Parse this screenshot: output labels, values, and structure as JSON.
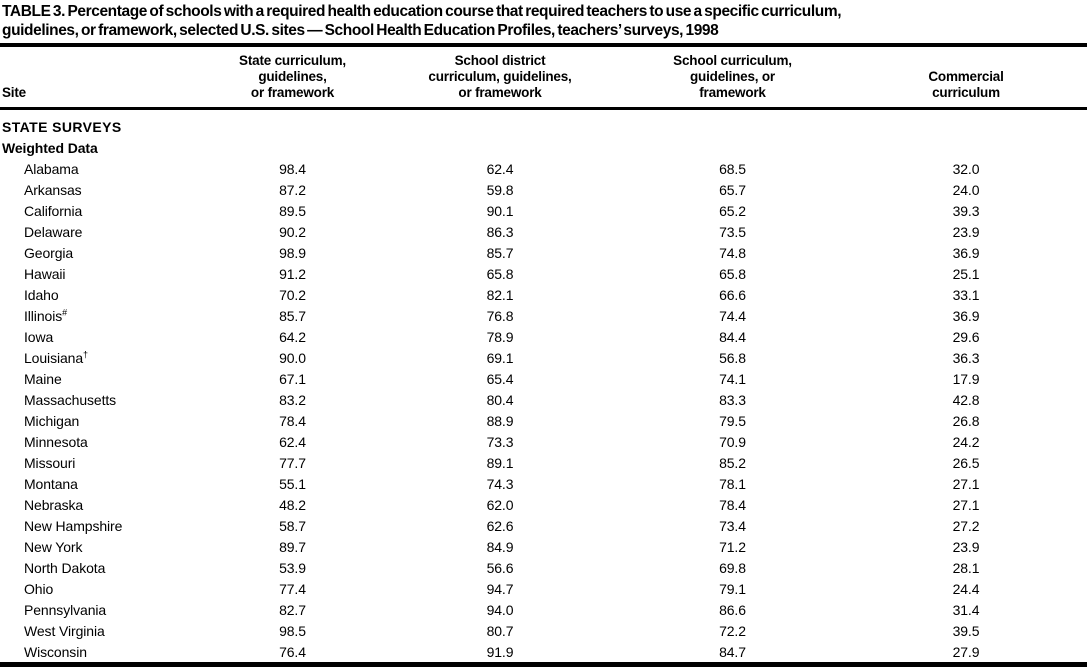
{
  "page": {
    "title_line1": "TABLE 3. Percentage of schools with a required health education course that required teachers to use a specific curriculum,",
    "title_line2": "guidelines, or framework, selected U.S. sites — School Health Education Profiles, teachers’ surveys, 1998"
  },
  "table": {
    "colors": {
      "text": "#000000",
      "background": "#ffffff",
      "rule": "#000000"
    },
    "column_headers": {
      "site": "Site",
      "state": "State curriculum,\nguidelines,\nor framework",
      "district": "School district\ncurriculum, guidelines,\nor framework",
      "school": "School curriculum,\nguidelines, or\nframework",
      "commercial": "Commercial\ncurriculum"
    },
    "section_label": "STATE SURVEYS",
    "subsection_label": "Weighted Data",
    "rows": [
      {
        "site": "Alabama",
        "site_sup": "",
        "state": "98.4",
        "district": "62.4",
        "school": "68.5",
        "commercial": "32.0"
      },
      {
        "site": "Arkansas",
        "site_sup": "",
        "state": "87.2",
        "district": "59.8",
        "school": "65.7",
        "commercial": "24.0"
      },
      {
        "site": "California",
        "site_sup": "",
        "state": "89.5",
        "district": "90.1",
        "school": "65.2",
        "commercial": "39.3"
      },
      {
        "site": "Delaware",
        "site_sup": "",
        "state": "90.2",
        "district": "86.3",
        "school": "73.5",
        "commercial": "23.9"
      },
      {
        "site": "Georgia",
        "site_sup": "",
        "state": "98.9",
        "district": "85.7",
        "school": "74.8",
        "commercial": "36.9"
      },
      {
        "site": "Hawaii",
        "site_sup": "",
        "state": "91.2",
        "district": "65.8",
        "school": "65.8",
        "commercial": "25.1"
      },
      {
        "site": "Idaho",
        "site_sup": "",
        "state": "70.2",
        "district": "82.1",
        "school": "66.6",
        "commercial": "33.1"
      },
      {
        "site": "Illinois",
        "site_sup": "#",
        "state": "85.7",
        "district": "76.8",
        "school": "74.4",
        "commercial": "36.9"
      },
      {
        "site": "Iowa",
        "site_sup": "",
        "state": "64.2",
        "district": "78.9",
        "school": "84.4",
        "commercial": "29.6"
      },
      {
        "site": "Louisiana",
        "site_sup": "†",
        "state": "90.0",
        "district": "69.1",
        "school": "56.8",
        "commercial": "36.3"
      },
      {
        "site": "Maine",
        "site_sup": "",
        "state": "67.1",
        "district": "65.4",
        "school": "74.1",
        "commercial": "17.9"
      },
      {
        "site": "Massachusetts",
        "site_sup": "",
        "state": "83.2",
        "district": "80.4",
        "school": "83.3",
        "commercial": "42.8"
      },
      {
        "site": "Michigan",
        "site_sup": "",
        "state": "78.4",
        "district": "88.9",
        "school": "79.5",
        "commercial": "26.8"
      },
      {
        "site": "Minnesota",
        "site_sup": "",
        "state": "62.4",
        "district": "73.3",
        "school": "70.9",
        "commercial": "24.2"
      },
      {
        "site": "Missouri",
        "site_sup": "",
        "state": "77.7",
        "district": "89.1",
        "school": "85.2",
        "commercial": "26.5"
      },
      {
        "site": "Montana",
        "site_sup": "",
        "state": "55.1",
        "district": "74.3",
        "school": "78.1",
        "commercial": "27.1"
      },
      {
        "site": "Nebraska",
        "site_sup": "",
        "state": "48.2",
        "district": "62.0",
        "school": "78.4",
        "commercial": "27.1"
      },
      {
        "site": "New Hampshire",
        "site_sup": "",
        "state": "58.7",
        "district": "62.6",
        "school": "73.4",
        "commercial": "27.2"
      },
      {
        "site": "New York",
        "site_sup": "",
        "state": "89.7",
        "district": "84.9",
        "school": "71.2",
        "commercial": "23.9"
      },
      {
        "site": "North Dakota",
        "site_sup": "",
        "state": "53.9",
        "district": "56.6",
        "school": "69.8",
        "commercial": "28.1"
      },
      {
        "site": "Ohio",
        "site_sup": "",
        "state": "77.4",
        "district": "94.7",
        "school": "79.1",
        "commercial": "24.4"
      },
      {
        "site": "Pennsylvania",
        "site_sup": "",
        "state": "82.7",
        "district": "94.0",
        "school": "86.6",
        "commercial": "31.4"
      },
      {
        "site": "West Virginia",
        "site_sup": "",
        "state": "98.5",
        "district": "80.7",
        "school": "72.2",
        "commercial": "39.5"
      },
      {
        "site": "Wisconsin",
        "site_sup": "",
        "state": "76.4",
        "district": "91.9",
        "school": "84.7",
        "commercial": "27.9"
      }
    ]
  }
}
